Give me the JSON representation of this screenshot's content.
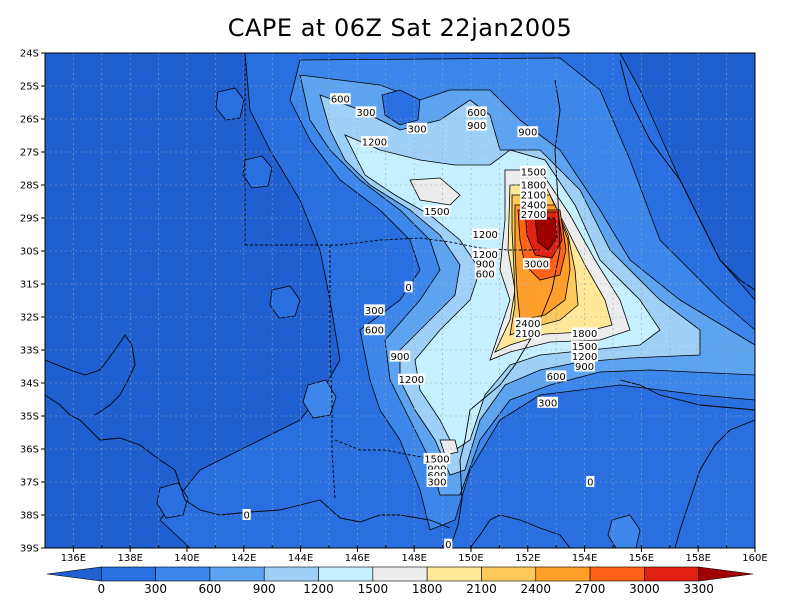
{
  "title": "CAPE at 06Z Sat 22jan2005",
  "colors": {
    "levels": [
      "#1f5fd0",
      "#2a6fe0",
      "#3d86ea",
      "#5ea3f0",
      "#9fd0f8",
      "#c6f0ff",
      "#ececec",
      "#ffe89a",
      "#ffc85a",
      "#ff9e28",
      "#ff6218",
      "#e02010",
      "#a00000"
    ],
    "land_base": "#2a6fe0",
    "ocean_far": "#3d86ea"
  },
  "map": {
    "lon_ticks": [
      "136E",
      "138E",
      "140E",
      "142E",
      "144E",
      "146E",
      "148E",
      "150E",
      "152E",
      "154E",
      "156E",
      "158E",
      "160E"
    ],
    "lat_ticks": [
      "24S",
      "25S",
      "26S",
      "27S",
      "28S",
      "29S",
      "30S",
      "31S",
      "32S",
      "33S",
      "34S",
      "35S",
      "36S",
      "37S",
      "38S",
      "39S"
    ]
  },
  "contour_labels": [
    {
      "text": "600",
      "lon": 145.4,
      "lat": 25.4
    },
    {
      "text": "300",
      "lon": 146.3,
      "lat": 25.8
    },
    {
      "text": "600",
      "lon": 150.2,
      "lat": 25.8
    },
    {
      "text": "900",
      "lon": 150.2,
      "lat": 26.2
    },
    {
      "text": "300",
      "lon": 148.1,
      "lat": 26.3
    },
    {
      "text": "900",
      "lon": 152.0,
      "lat": 26.4
    },
    {
      "text": "1200",
      "lon": 146.6,
      "lat": 26.7
    },
    {
      "text": "1500",
      "lon": 152.2,
      "lat": 27.6
    },
    {
      "text": "1800",
      "lon": 152.2,
      "lat": 28.0
    },
    {
      "text": "2100",
      "lon": 152.2,
      "lat": 28.3
    },
    {
      "text": "2400",
      "lon": 152.2,
      "lat": 28.6
    },
    {
      "text": "2700",
      "lon": 152.2,
      "lat": 28.9
    },
    {
      "text": "1500",
      "lon": 148.8,
      "lat": 28.8
    },
    {
      "text": "1200",
      "lon": 150.5,
      "lat": 29.5
    },
    {
      "text": "1200",
      "lon": 150.5,
      "lat": 30.1
    },
    {
      "text": "900",
      "lon": 150.5,
      "lat": 30.4
    },
    {
      "text": "600",
      "lon": 150.5,
      "lat": 30.7
    },
    {
      "text": "3000",
      "lon": 152.3,
      "lat": 30.4
    },
    {
      "text": "0",
      "lon": 147.8,
      "lat": 31.1
    },
    {
      "text": "300",
      "lon": 146.6,
      "lat": 31.8
    },
    {
      "text": "600",
      "lon": 146.6,
      "lat": 32.4
    },
    {
      "text": "2400",
      "lon": 152.0,
      "lat": 32.2
    },
    {
      "text": "2100",
      "lon": 152.0,
      "lat": 32.5
    },
    {
      "text": "1800",
      "lon": 154.0,
      "lat": 32.5
    },
    {
      "text": "1500",
      "lon": 154.0,
      "lat": 32.9
    },
    {
      "text": "1200",
      "lon": 154.0,
      "lat": 33.2
    },
    {
      "text": "900",
      "lon": 154.0,
      "lat": 33.5
    },
    {
      "text": "900",
      "lon": 147.5,
      "lat": 33.2
    },
    {
      "text": "600",
      "lon": 153.0,
      "lat": 33.8
    },
    {
      "text": "1200",
      "lon": 147.9,
      "lat": 33.9
    },
    {
      "text": "300",
      "lon": 152.7,
      "lat": 34.6
    },
    {
      "text": "1500",
      "lon": 148.8,
      "lat": 36.3
    },
    {
      "text": "900",
      "lon": 148.8,
      "lat": 36.6
    },
    {
      "text": "600",
      "lon": 148.8,
      "lat": 36.8
    },
    {
      "text": "300",
      "lon": 148.8,
      "lat": 37.0
    },
    {
      "text": "0",
      "lon": 154.2,
      "lat": 37.0
    },
    {
      "text": "0",
      "lon": 142.1,
      "lat": 38.0
    },
    {
      "text": "0",
      "lon": 149.2,
      "lat": 38.9
    }
  ],
  "colorbar": {
    "labels": [
      "0",
      "300",
      "600",
      "900",
      "1200",
      "1500",
      "1800",
      "2100",
      "2400",
      "2700",
      "3000",
      "3300"
    ]
  }
}
